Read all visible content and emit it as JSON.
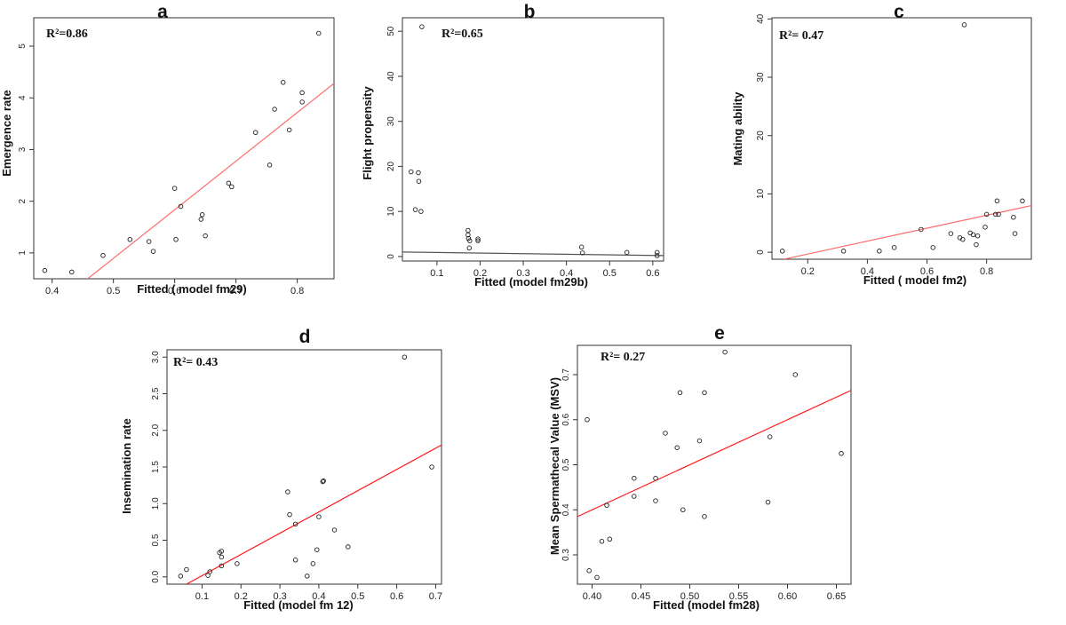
{
  "chart_data": [
    {
      "type": "scatter",
      "panel": "a",
      "annotation": "R²=0.86",
      "xlabel": "Fitted ( model fm29)",
      "ylabel": "Emergence rate",
      "xlim": [
        0.37,
        0.86
      ],
      "ylim": [
        0.5,
        5.55
      ],
      "xticks": [
        "0.4",
        "0.5",
        "0.6",
        "0.7",
        "0.8"
      ],
      "yticks": [
        "1",
        "2",
        "3",
        "4",
        "5"
      ],
      "points": [
        [
          0.388,
          0.66
        ],
        [
          0.432,
          0.63
        ],
        [
          0.483,
          0.95
        ],
        [
          0.527,
          1.26
        ],
        [
          0.558,
          1.22
        ],
        [
          0.565,
          1.03
        ],
        [
          0.6,
          2.25
        ],
        [
          0.602,
          1.26
        ],
        [
          0.61,
          1.9
        ],
        [
          0.643,
          1.65
        ],
        [
          0.645,
          1.74
        ],
        [
          0.65,
          1.33
        ],
        [
          0.688,
          2.35
        ],
        [
          0.693,
          2.28
        ],
        [
          0.732,
          3.33
        ],
        [
          0.755,
          2.7
        ],
        [
          0.763,
          3.78
        ],
        [
          0.777,
          4.3
        ],
        [
          0.787,
          3.38
        ],
        [
          0.808,
          3.92
        ],
        [
          0.808,
          4.1
        ],
        [
          0.835,
          5.25
        ]
      ],
      "fit_line": [
        [
          0.458,
          0.5
        ],
        [
          0.86,
          4.28
        ]
      ],
      "fit_color": "#ff6b6b"
    },
    {
      "type": "scatter",
      "panel": "b",
      "annotation": "R²=0.65",
      "xlabel": "Fitted (model fm29b)",
      "ylabel": "Flight propensity",
      "xlim": [
        0.02,
        0.625
      ],
      "ylim": [
        -1,
        53
      ],
      "xticks": [
        "0.1",
        "0.2",
        "0.3",
        "0.4",
        "0.5",
        "0.6"
      ],
      "yticks": [
        "0",
        "10",
        "20",
        "30",
        "40",
        "50"
      ],
      "points": [
        [
          0.04,
          18.8
        ],
        [
          0.05,
          10.4
        ],
        [
          0.057,
          18.6
        ],
        [
          0.058,
          16.7
        ],
        [
          0.063,
          10.0
        ],
        [
          0.065,
          51.0
        ],
        [
          0.172,
          5.8
        ],
        [
          0.172,
          4.8
        ],
        [
          0.173,
          4.0
        ],
        [
          0.175,
          1.9
        ],
        [
          0.176,
          3.5
        ],
        [
          0.195,
          3.9
        ],
        [
          0.195,
          3.5
        ],
        [
          0.435,
          2.1
        ],
        [
          0.437,
          0.8
        ],
        [
          0.54,
          0.9
        ],
        [
          0.61,
          0.9
        ],
        [
          0.61,
          0.2
        ]
      ],
      "fit_line": [
        [
          0.02,
          1.0
        ],
        [
          0.625,
          0.2
        ]
      ],
      "fit_color": "#555555"
    },
    {
      "type": "scatter",
      "panel": "c",
      "annotation": "R²= 0.47",
      "xlabel": "Fitted ( model fm2)",
      "ylabel": "Mating ability",
      "xlim": [
        0.08,
        0.95
      ],
      "ylim": [
        -1.2,
        40.2
      ],
      "xticks": [
        "0.2",
        "0.4",
        "0.6",
        "0.8"
      ],
      "yticks": [
        "0",
        "10",
        "20",
        "30",
        "40"
      ],
      "points": [
        [
          0.115,
          0.2
        ],
        [
          0.32,
          0.2
        ],
        [
          0.44,
          0.2
        ],
        [
          0.49,
          0.8
        ],
        [
          0.58,
          3.9
        ],
        [
          0.62,
          0.8
        ],
        [
          0.68,
          3.2
        ],
        [
          0.71,
          2.5
        ],
        [
          0.72,
          2.2
        ],
        [
          0.725,
          39.0
        ],
        [
          0.745,
          3.3
        ],
        [
          0.755,
          3.0
        ],
        [
          0.765,
          1.3
        ],
        [
          0.77,
          2.8
        ],
        [
          0.795,
          4.3
        ],
        [
          0.8,
          6.5
        ],
        [
          0.83,
          6.5
        ],
        [
          0.835,
          8.8
        ],
        [
          0.84,
          6.5
        ],
        [
          0.89,
          6.0
        ],
        [
          0.895,
          3.2
        ],
        [
          0.92,
          8.8
        ]
      ],
      "fit_line": [
        [
          0.12,
          -1.2
        ],
        [
          0.95,
          8.0
        ]
      ],
      "fit_color": "#ff6b6b"
    },
    {
      "type": "scatter",
      "panel": "d",
      "annotation": "R²= 0.43",
      "xlabel": "Fitted (model fm 12)",
      "ylabel": "Insemination rate",
      "xlim": [
        0.01,
        0.715
      ],
      "ylim": [
        -0.1,
        3.1
      ],
      "xticks": [
        "0.1",
        "0.2",
        "0.3",
        "0.4",
        "0.5",
        "0.6",
        "0.7"
      ],
      "yticks": [
        "0.0",
        "0.5",
        "1.0",
        "1.5",
        "2.0",
        "2.5",
        "3.0"
      ],
      "points": [
        [
          0.045,
          0.01
        ],
        [
          0.06,
          0.1
        ],
        [
          0.115,
          0.02
        ],
        [
          0.12,
          0.07
        ],
        [
          0.145,
          0.33
        ],
        [
          0.15,
          0.35
        ],
        [
          0.15,
          0.27
        ],
        [
          0.15,
          0.15
        ],
        [
          0.19,
          0.18
        ],
        [
          0.32,
          1.16
        ],
        [
          0.325,
          0.85
        ],
        [
          0.34,
          0.72
        ],
        [
          0.34,
          0.23
        ],
        [
          0.37,
          0.01
        ],
        [
          0.385,
          0.18
        ],
        [
          0.395,
          0.37
        ],
        [
          0.4,
          0.82
        ],
        [
          0.41,
          1.3
        ],
        [
          0.412,
          1.31
        ],
        [
          0.44,
          0.64
        ],
        [
          0.475,
          0.41
        ],
        [
          0.62,
          3.0
        ],
        [
          0.69,
          1.5
        ]
      ],
      "fit_line": [
        [
          0.06,
          -0.1
        ],
        [
          0.715,
          1.8
        ]
      ],
      "fit_color": "#ff1a1a"
    },
    {
      "type": "scatter",
      "panel": "e",
      "annotation": "R²= 0.27",
      "xlabel": "Fitted (model fm28)",
      "ylabel": "Mean Spermathecal Value (MSV)",
      "xlim": [
        0.385,
        0.665
      ],
      "ylim": [
        0.235,
        0.765
      ],
      "xticks": [
        "0.40",
        "0.45",
        "0.50",
        "0.55",
        "0.60",
        "0.65"
      ],
      "yticks": [
        "0.3",
        "0.4",
        "0.5",
        "0.6",
        "0.7"
      ],
      "points": [
        [
          0.395,
          0.6
        ],
        [
          0.397,
          0.265
        ],
        [
          0.405,
          0.25
        ],
        [
          0.41,
          0.33
        ],
        [
          0.415,
          0.41
        ],
        [
          0.418,
          0.335
        ],
        [
          0.443,
          0.47
        ],
        [
          0.443,
          0.43
        ],
        [
          0.465,
          0.42
        ],
        [
          0.465,
          0.47
        ],
        [
          0.475,
          0.57
        ],
        [
          0.487,
          0.538
        ],
        [
          0.49,
          0.66
        ],
        [
          0.493,
          0.4
        ],
        [
          0.51,
          0.553
        ],
        [
          0.515,
          0.66
        ],
        [
          0.515,
          0.385
        ],
        [
          0.536,
          0.75
        ],
        [
          0.58,
          0.417
        ],
        [
          0.582,
          0.562
        ],
        [
          0.608,
          0.7
        ],
        [
          0.655,
          0.525
        ]
      ],
      "fit_line": [
        [
          0.385,
          0.385
        ],
        [
          0.665,
          0.665
        ]
      ],
      "fit_color": "#ff1a1a"
    }
  ]
}
